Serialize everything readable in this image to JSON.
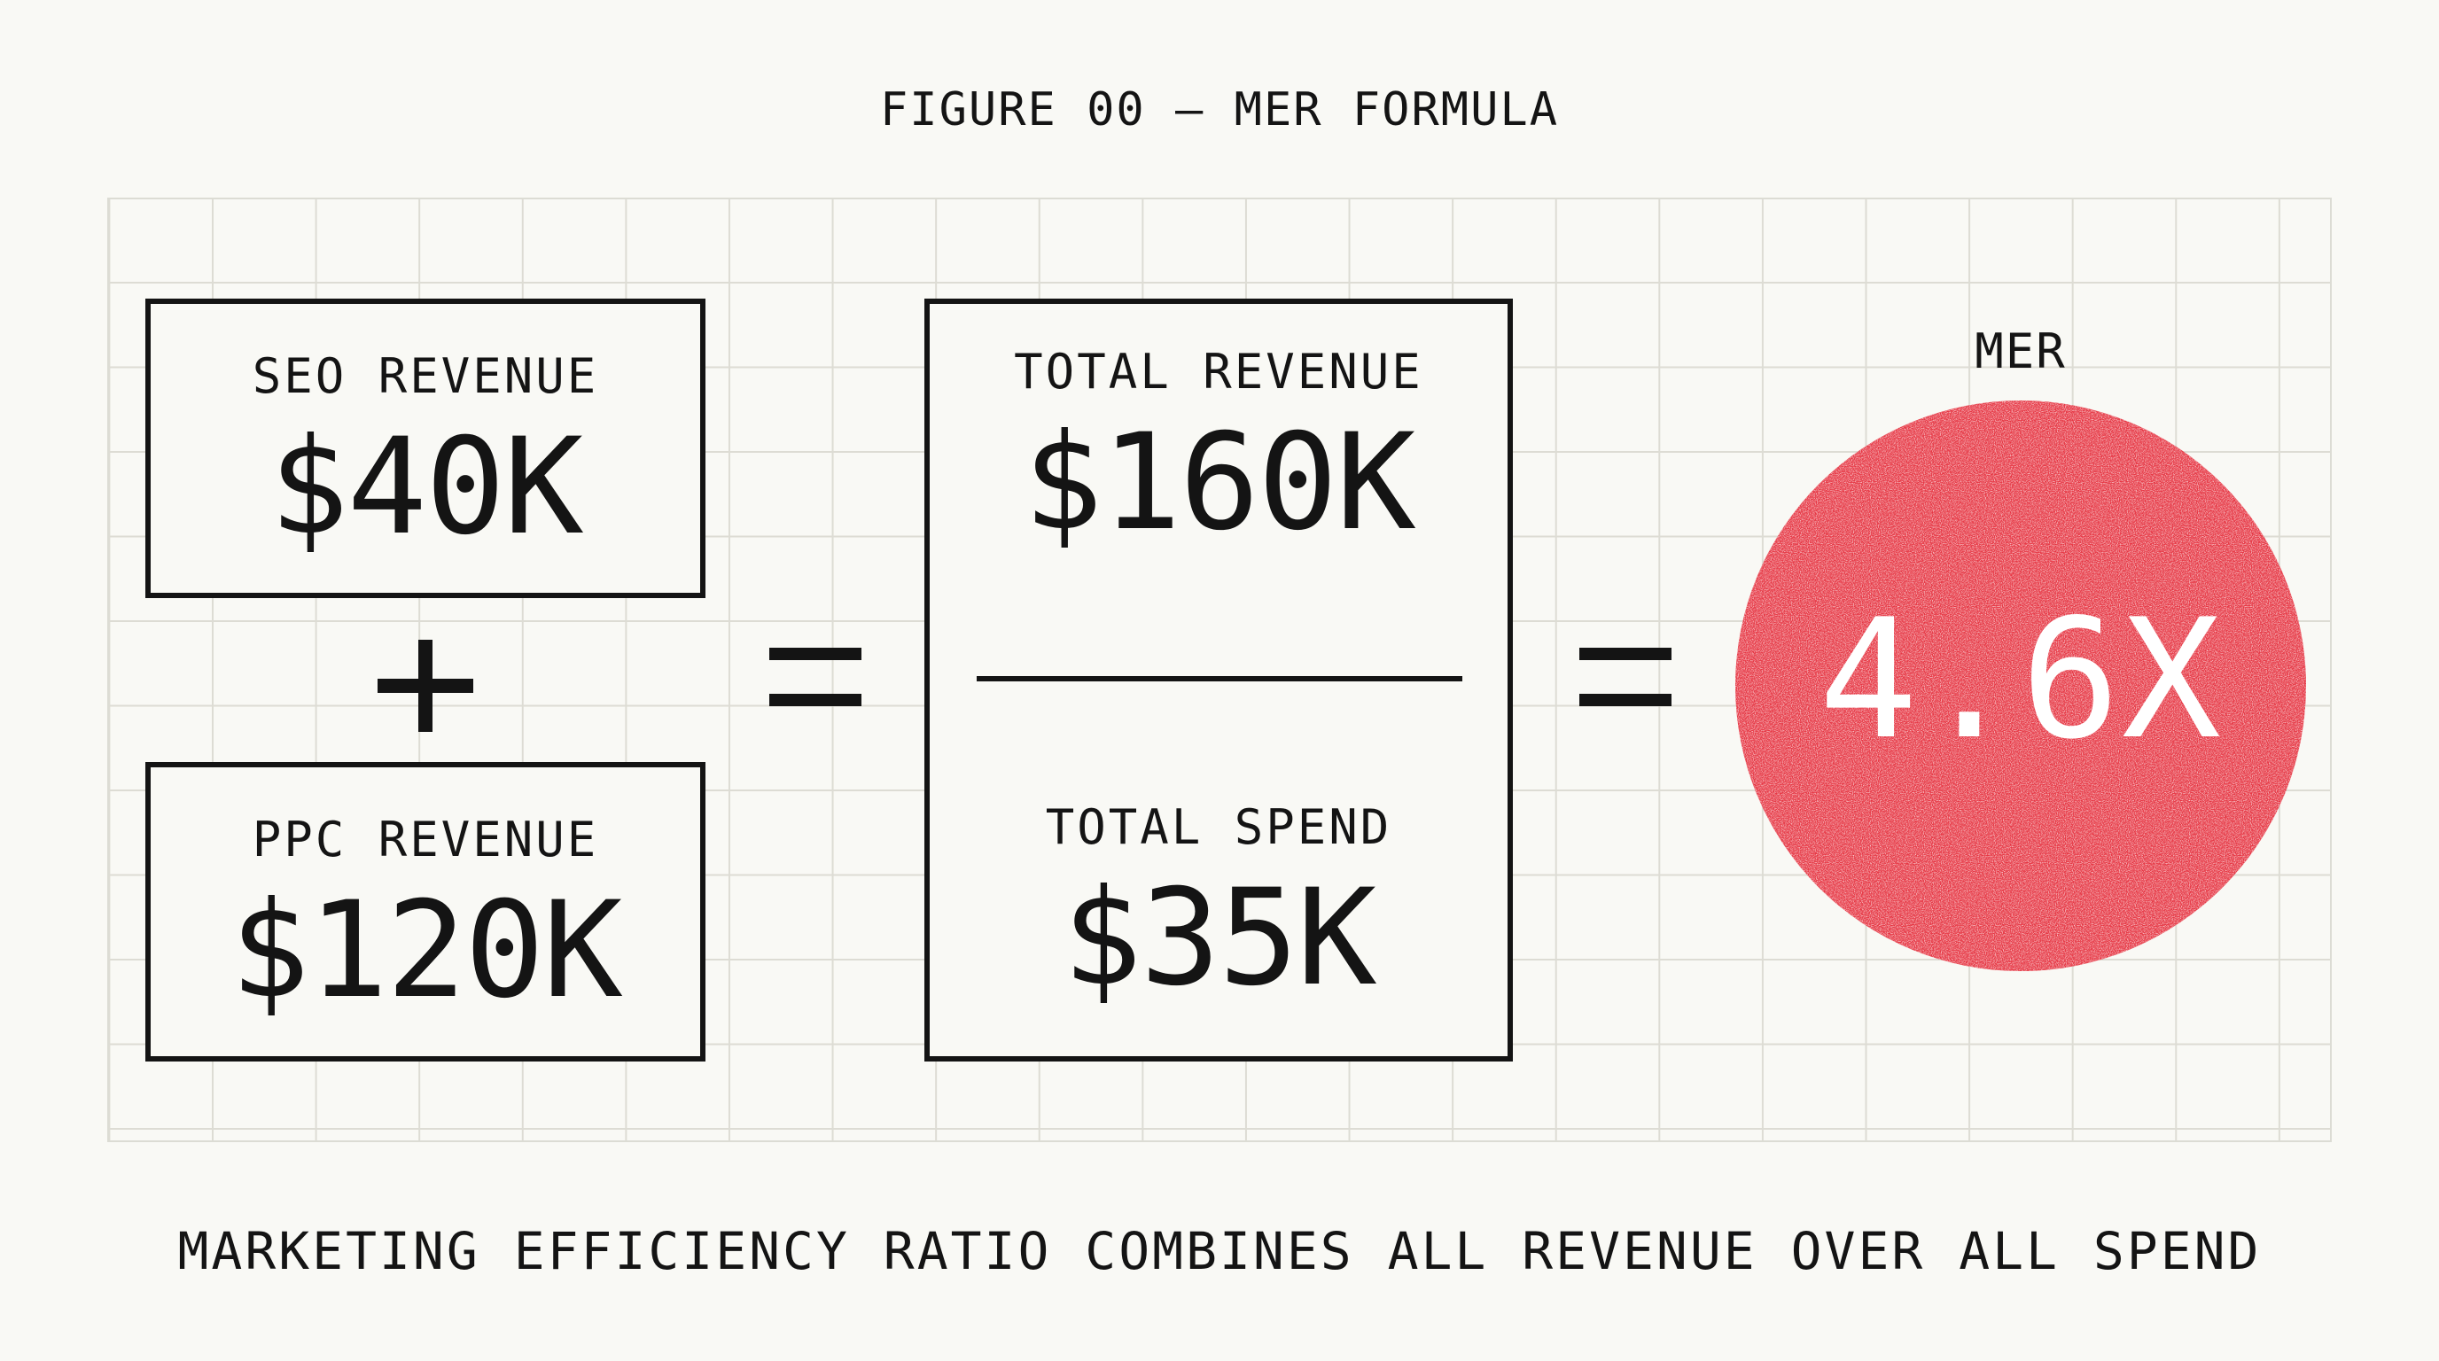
{
  "figure_title": "FIGURE 00 — MER FORMULA",
  "seo": {
    "label": "SEO REVENUE",
    "value": "$40K"
  },
  "ppc": {
    "label": "PPC REVENUE",
    "value": "$120K"
  },
  "total_revenue": {
    "label": "TOTAL REVENUE",
    "value": "$160K"
  },
  "total_spend": {
    "label": "TOTAL SPEND",
    "value": "$35K"
  },
  "mer": {
    "label": "MER",
    "value": "4.6X"
  },
  "caption": "MARKETING EFFICIENCY RATIO COMBINES ALL REVENUE OVER ALL SPEND",
  "colors": {
    "background": "#f9f9f5",
    "ink": "#141414",
    "accent": "#e63744",
    "grid": "#dddcd4"
  },
  "operators": {
    "plus": "plus-sign",
    "equals": "equals-sign"
  }
}
